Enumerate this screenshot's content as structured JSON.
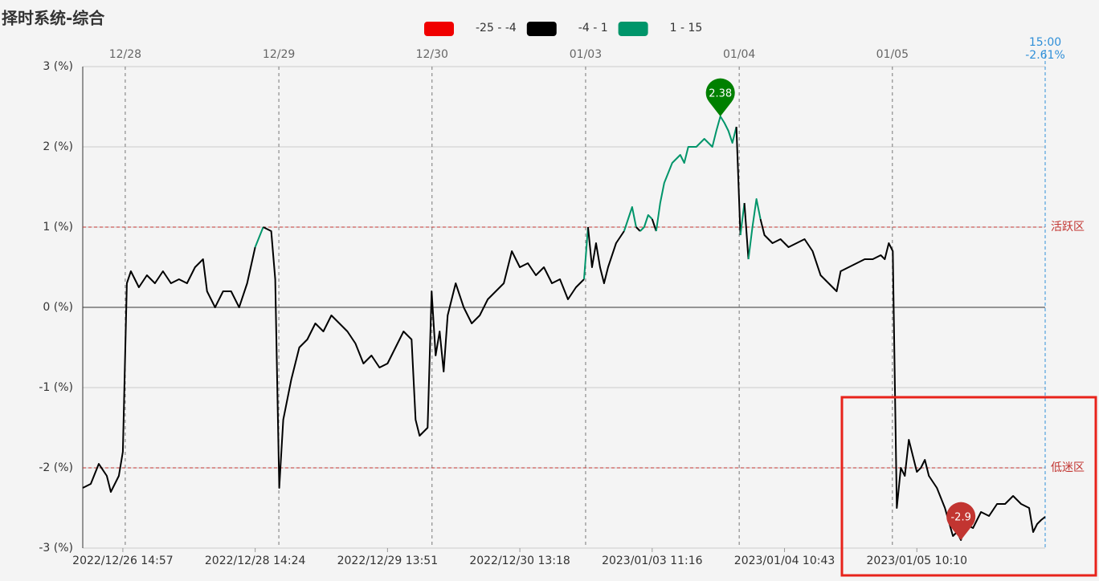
{
  "chart_data": {
    "type": "line",
    "title": "择时系统-综合",
    "x": [
      0,
      2,
      4,
      6,
      7,
      9,
      10,
      11,
      12,
      14,
      16,
      18,
      20,
      22,
      24,
      26,
      28,
      30,
      31,
      33,
      35,
      37,
      39,
      41,
      43,
      45,
      47,
      48,
      49,
      50,
      52,
      54,
      56,
      58,
      60,
      62,
      64,
      66,
      68,
      70,
      72,
      74,
      76,
      78,
      80,
      82,
      83,
      84,
      86,
      87,
      88,
      89,
      90,
      91,
      93,
      95,
      97,
      99,
      101,
      103,
      105,
      107,
      109,
      111,
      113,
      115,
      117,
      119,
      121,
      123,
      125,
      126,
      127,
      128,
      129,
      130,
      131,
      133,
      135,
      136,
      137,
      138,
      139,
      140,
      141,
      142,
      143,
      144,
      145,
      147,
      149,
      150,
      151,
      153,
      155,
      157,
      158,
      159,
      160,
      161,
      162,
      163,
      164,
      165,
      166,
      167,
      168,
      169,
      170,
      172,
      174,
      176,
      178,
      180,
      182,
      184,
      186,
      188,
      189,
      191,
      193,
      195,
      197,
      199,
      200,
      201,
      202,
      203,
      204,
      205,
      206,
      207,
      208,
      209,
      210,
      211,
      213,
      215,
      217,
      218,
      219,
      220,
      222,
      224,
      226,
      228,
      230,
      232,
      234,
      236,
      237,
      238,
      239,
      240
    ],
    "values": [
      -2.25,
      -2.2,
      -1.95,
      -2.1,
      -2.3,
      -2.1,
      -1.8,
      0.3,
      0.45,
      0.25,
      0.4,
      0.3,
      0.45,
      0.3,
      0.35,
      0.3,
      0.5,
      0.6,
      0.2,
      0.0,
      0.2,
      0.2,
      0.0,
      0.3,
      0.75,
      1.0,
      0.95,
      0.35,
      -2.25,
      -1.4,
      -0.9,
      -0.5,
      -0.4,
      -0.2,
      -0.3,
      -0.1,
      -0.2,
      -0.3,
      -0.45,
      -0.7,
      -0.6,
      -0.75,
      -0.7,
      -0.5,
      -0.3,
      -0.4,
      -1.4,
      -1.6,
      -1.5,
      0.2,
      -0.6,
      -0.3,
      -0.8,
      -0.1,
      0.3,
      0.0,
      -0.2,
      -0.1,
      0.1,
      0.2,
      0.3,
      0.7,
      0.5,
      0.55,
      0.4,
      0.5,
      0.3,
      0.35,
      0.1,
      0.25,
      0.35,
      1.0,
      0.5,
      0.8,
      0.5,
      0.3,
      0.5,
      0.8,
      0.95,
      1.1,
      1.25,
      1.0,
      0.95,
      1.0,
      1.15,
      1.1,
      0.95,
      1.3,
      1.55,
      1.8,
      1.9,
      1.8,
      2.0,
      2.0,
      2.1,
      2.0,
      2.2,
      2.38,
      2.3,
      2.2,
      2.05,
      2.25,
      0.9,
      1.3,
      0.6,
      1.0,
      1.35,
      1.1,
      0.9,
      0.8,
      0.85,
      0.75,
      0.8,
      0.85,
      0.7,
      0.4,
      0.3,
      0.2,
      0.45,
      0.5,
      0.55,
      0.6,
      0.6,
      0.65,
      0.6,
      0.8,
      0.7,
      -2.5,
      -2.0,
      -2.1,
      -1.65,
      -1.85,
      -2.05,
      -2.0,
      -1.9,
      -2.1,
      -2.25,
      -2.5,
      -2.85,
      -2.8,
      -2.9,
      -2.7,
      -2.75,
      -2.55,
      -2.6,
      -2.45,
      -2.45,
      -2.35,
      -2.45,
      -2.5,
      -2.8,
      -2.7,
      -2.65,
      -2.61
    ],
    "xlim": [
      0,
      240
    ],
    "xticks": [
      {
        "value": 10,
        "label": "2022/12/26 14:57"
      },
      {
        "value": 43,
        "label": "2022/12/28 14:24"
      },
      {
        "value": 76,
        "label": "2022/12/29 13:51"
      },
      {
        "value": 109,
        "label": "2022/12/30 13:18"
      },
      {
        "value": 142,
        "label": "2023/01/03 11:16"
      },
      {
        "value": 175,
        "label": "2023/01/04 10:43"
      },
      {
        "value": 208,
        "label": "2023/01/05 10:10"
      }
    ],
    "x2ticks": [
      {
        "value": 10.6,
        "label": "12/28"
      },
      {
        "value": 48.9,
        "label": "12/29"
      },
      {
        "value": 87.1,
        "label": "12/30"
      },
      {
        "value": 125.4,
        "label": "01/03"
      },
      {
        "value": 163.7,
        "label": "01/04"
      },
      {
        "value": 201.9,
        "label": "01/05"
      }
    ],
    "ylim": [
      -3,
      3
    ],
    "yticks": [
      {
        "value": 3,
        "label": "3 (%)"
      },
      {
        "value": 2,
        "label": "2 (%)"
      },
      {
        "value": 1,
        "label": "1 (%)"
      },
      {
        "value": 0,
        "label": "0 (%)"
      },
      {
        "value": -1,
        "label": "-1 (%)"
      },
      {
        "value": -2,
        "label": "-2 (%)"
      },
      {
        "value": -3,
        "label": "-3 (%)"
      }
    ],
    "grid": true,
    "visual_map": [
      {
        "min": -25,
        "max": -4,
        "label": "-25 - -4",
        "color": "#f00000"
      },
      {
        "min": -4,
        "max": 1,
        "label": "-4 - 1",
        "color": "#000000"
      },
      {
        "min": 1,
        "max": 15,
        "label": "1 - 15",
        "color": "#00956a"
      }
    ],
    "mark_lines": [
      {
        "value": 1,
        "label": "活跃区"
      },
      {
        "value": -2,
        "label": "低迷区"
      }
    ],
    "mark_points": [
      {
        "value": 2.38,
        "color": "#008000"
      },
      {
        "value": -2.9,
        "color": "#c23531"
      }
    ],
    "end_marker": {
      "time": "15:00",
      "value": -2.61,
      "label": "-2.61%"
    }
  }
}
